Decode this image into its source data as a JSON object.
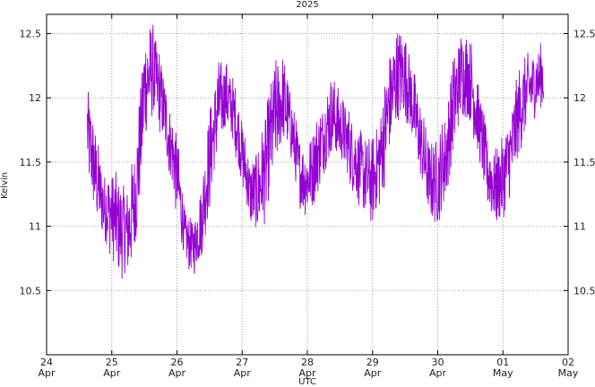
{
  "chart_data": {
    "type": "line",
    "title": "2025",
    "xlabel": "UTC",
    "ylabel": "Kelvin",
    "xlim": [
      "2025-04-24",
      "2025-05-02"
    ],
    "ylim": [
      10.0,
      12.65
    ],
    "x_ticks": [
      "24 Apr",
      "25 Apr",
      "26 Apr",
      "27 Apr",
      "28 Apr",
      "29 Apr",
      "30 Apr",
      "01 May",
      "02 May"
    ],
    "y_ticks": [
      10.5,
      11,
      11.5,
      12,
      12.5
    ],
    "grid": true,
    "legend": "none",
    "series": [
      {
        "color": "#9400d3",
        "x": [
          "2025-04-24 15:00",
          "2025-04-24 18:00",
          "2025-04-24 21:00",
          "2025-04-25 00:00",
          "2025-04-25 03:00",
          "2025-04-25 06:00",
          "2025-04-25 09:00",
          "2025-04-25 12:00",
          "2025-04-25 15:00",
          "2025-04-25 18:00",
          "2025-04-25 21:00",
          "2025-04-26 00:00",
          "2025-04-26 03:00",
          "2025-04-26 06:00",
          "2025-04-26 09:00",
          "2025-04-26 12:00",
          "2025-04-26 15:00",
          "2025-04-26 18:00",
          "2025-04-26 21:00",
          "2025-04-27 00:00",
          "2025-04-27 03:00",
          "2025-04-27 06:00",
          "2025-04-27 09:00",
          "2025-04-27 12:00",
          "2025-04-27 15:00",
          "2025-04-27 18:00",
          "2025-04-27 21:00",
          "2025-04-28 00:00",
          "2025-04-28 03:00",
          "2025-04-28 06:00",
          "2025-04-28 09:00",
          "2025-04-28 12:00",
          "2025-04-28 15:00",
          "2025-04-28 18:00",
          "2025-04-28 21:00",
          "2025-04-29 00:00",
          "2025-04-29 03:00",
          "2025-04-29 06:00",
          "2025-04-29 09:00",
          "2025-04-29 12:00",
          "2025-04-29 15:00",
          "2025-04-29 18:00",
          "2025-04-29 21:00",
          "2025-04-30 00:00",
          "2025-04-30 03:00",
          "2025-04-30 06:00",
          "2025-04-30 09:00",
          "2025-04-30 12:00",
          "2025-04-30 15:00",
          "2025-04-30 18:00",
          "2025-04-30 21:00",
          "2025-05-01 00:00",
          "2025-05-01 03:00",
          "2025-05-01 06:00",
          "2025-05-01 09:00",
          "2025-05-01 12:00",
          "2025-05-01 15:00"
        ],
        "low": [
          11.35,
          11.05,
          10.85,
          10.75,
          10.6,
          10.55,
          10.85,
          11.6,
          11.85,
          11.7,
          11.4,
          11.05,
          10.7,
          10.6,
          10.75,
          11.1,
          11.55,
          11.75,
          11.6,
          11.3,
          11.0,
          10.9,
          11.05,
          11.4,
          11.65,
          11.5,
          11.15,
          11.05,
          11.2,
          11.4,
          11.55,
          11.5,
          11.35,
          11.2,
          11.05,
          11.0,
          11.15,
          11.5,
          11.8,
          11.85,
          11.6,
          11.3,
          11.05,
          11.0,
          11.15,
          11.55,
          11.85,
          11.8,
          11.5,
          11.15,
          11.0,
          11.0,
          11.2,
          11.55,
          11.75,
          11.85,
          11.9
        ],
        "high": [
          12.15,
          11.75,
          11.45,
          11.45,
          11.4,
          11.35,
          11.7,
          12.55,
          12.6,
          12.35,
          12.0,
          11.75,
          11.1,
          11.05,
          11.35,
          11.95,
          12.3,
          12.3,
          12.15,
          11.85,
          11.5,
          11.65,
          11.95,
          12.3,
          12.35,
          12.05,
          11.7,
          11.65,
          11.85,
          12.0,
          12.2,
          12.05,
          11.95,
          11.8,
          11.7,
          11.7,
          11.95,
          12.35,
          12.55,
          12.55,
          12.25,
          11.95,
          11.65,
          11.7,
          11.95,
          12.4,
          12.55,
          12.5,
          12.15,
          11.75,
          11.6,
          11.7,
          11.95,
          12.25,
          12.35,
          12.4,
          12.45
        ]
      }
    ]
  }
}
